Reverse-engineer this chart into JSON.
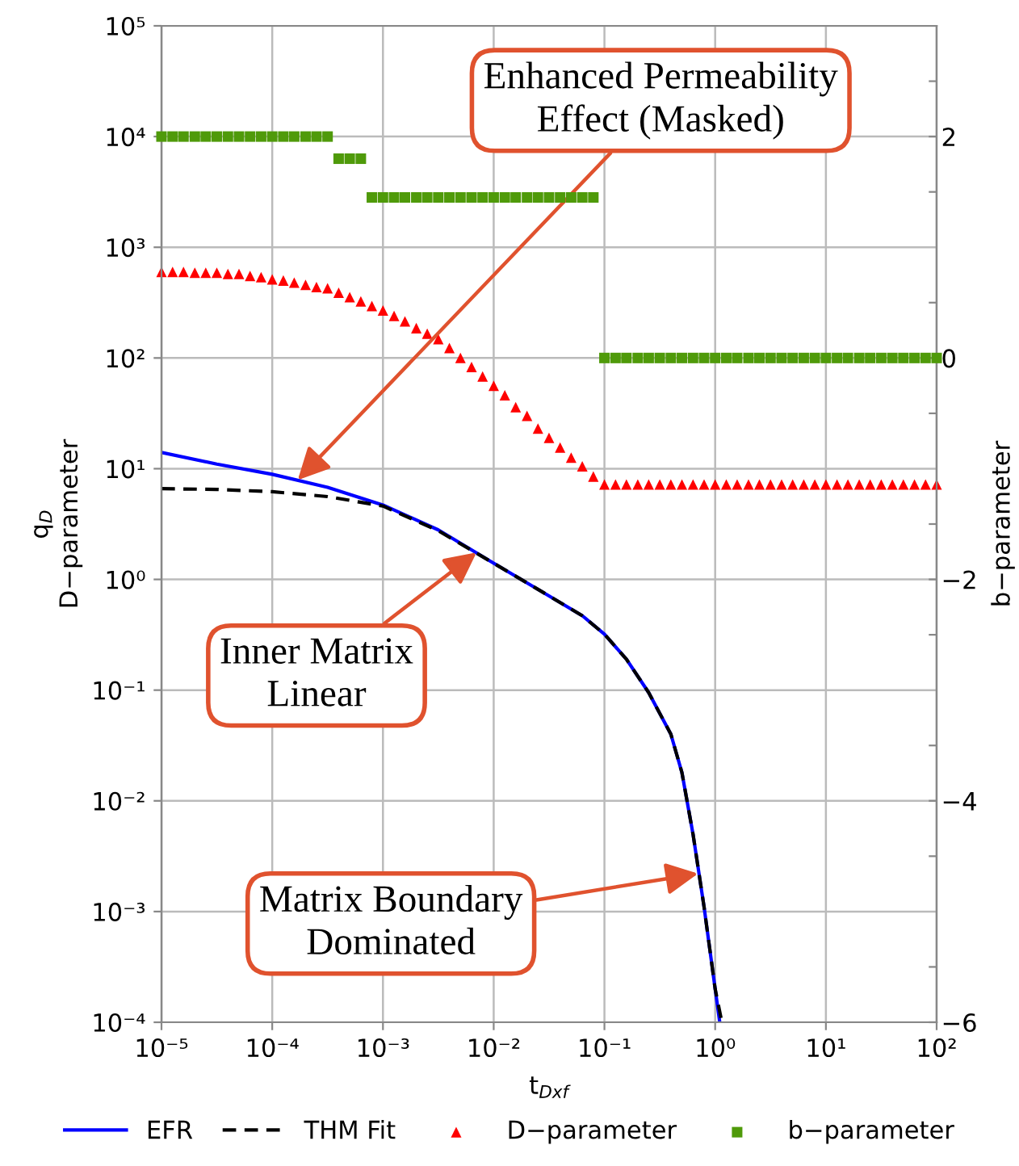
{
  "chart_data": {
    "type": "line",
    "xlabel": "t$_{Dxf}$",
    "ylabel": "q$_{D}$\nD−parameter",
    "y2label": "b−parameter",
    "log": "xy",
    "xlim": [
      1e-05,
      100
    ],
    "ylim": [
      0.0001,
      100000
    ],
    "y2lim": [
      -6,
      3
    ],
    "xticks": [
      {
        "value": 1e-05,
        "label": "10⁻⁵"
      },
      {
        "value": 0.0001,
        "label": "10⁻⁴"
      },
      {
        "value": 0.001,
        "label": "10⁻³"
      },
      {
        "value": 0.01,
        "label": "10⁻²"
      },
      {
        "value": 0.1,
        "label": "10⁻¹"
      },
      {
        "value": 1,
        "label": "10⁰"
      },
      {
        "value": 10,
        "label": "10¹"
      },
      {
        "value": 100,
        "label": "10²"
      }
    ],
    "yticks": [
      {
        "value": 0.0001,
        "label": "10⁻⁴"
      },
      {
        "value": 0.001,
        "label": "10⁻³"
      },
      {
        "value": 0.01,
        "label": "10⁻²"
      },
      {
        "value": 0.1,
        "label": "10⁻¹"
      },
      {
        "value": 1,
        "label": "10⁰"
      },
      {
        "value": 10,
        "label": "10¹"
      },
      {
        "value": 100,
        "label": "10²"
      },
      {
        "value": 1000,
        "label": "10³"
      },
      {
        "value": 10000,
        "label": "10⁴"
      },
      {
        "value": 100000,
        "label": "10⁵"
      }
    ],
    "y2ticks": [
      {
        "value": -6,
        "label": "−6"
      },
      {
        "value": -5.5,
        "label": null
      },
      {
        "value": -4.5,
        "label": null
      },
      {
        "value": -4,
        "label": "−4"
      },
      {
        "value": -3.5,
        "label": null
      },
      {
        "value": -2.5,
        "label": null
      },
      {
        "value": -2,
        "label": "−2"
      },
      {
        "value": -1.5,
        "label": null
      },
      {
        "value": -0.5,
        "label": null
      },
      0,
      {
        "value": 0.5,
        "label": null
      },
      {
        "value": 1.5,
        "label": null
      },
      2,
      {
        "value": 2.5,
        "label": null
      }
    ],
    "grid": true,
    "legend": "bottom",
    "series": [
      {
        "name": "EFR",
        "color": "#0000ff",
        "line_style": "solid",
        "x": [
          1e-05,
          3.16e-05,
          0.0001,
          0.000316,
          0.001,
          0.00316,
          0.01,
          0.0316,
          0.0631,
          0.1,
          0.158,
          0.251,
          0.398,
          0.501,
          0.631,
          0.794,
          1.0,
          1.1
        ],
        "values": [
          14,
          11,
          8.9,
          6.8,
          4.7,
          2.8,
          1.4,
          0.71,
          0.47,
          0.32,
          0.19,
          0.095,
          0.04,
          0.018,
          0.005,
          0.0011,
          0.0002,
          0.0001
        ]
      },
      {
        "name": "THM Fit",
        "color": "#000000",
        "line_style": "dashed",
        "x": [
          1e-05,
          3.16e-05,
          0.0001,
          0.000316,
          0.001,
          0.00316,
          0.01,
          0.0316,
          0.0631,
          0.1,
          0.158,
          0.251,
          0.398,
          0.501,
          0.631,
          0.794,
          1.0,
          1.15
        ],
        "values": [
          6.6,
          6.5,
          6.2,
          5.6,
          4.6,
          2.75,
          1.4,
          0.71,
          0.47,
          0.32,
          0.19,
          0.095,
          0.04,
          0.018,
          0.005,
          0.0011,
          0.0002,
          0.0001
        ]
      },
      {
        "name": "D−parameter",
        "type": "scatter",
        "marker": "triangle",
        "color": "#ff0000",
        "x": [
          1e-05,
          1.26e-05,
          1.58e-05,
          2e-05,
          2.51e-05,
          3.16e-05,
          3.98e-05,
          5.01e-05,
          6.31e-05,
          7.94e-05,
          0.0001,
          0.000126,
          0.000158,
          0.0002,
          0.000251,
          0.000316,
          0.000398,
          0.000501,
          0.000631,
          0.000794,
          0.001,
          0.00126,
          0.00158,
          0.002,
          0.00251,
          0.00316,
          0.00398,
          0.00501,
          0.00631,
          0.00794,
          0.01,
          0.0126,
          0.0158,
          0.02,
          0.0251,
          0.0316,
          0.0398,
          0.0501,
          0.0631,
          0.0794,
          0.1,
          0.126,
          0.158,
          0.2,
          0.251,
          0.316,
          0.398,
          0.501,
          0.631,
          0.794,
          1,
          1.26,
          1.58,
          2,
          2.51,
          3.16,
          3.98,
          5.01,
          6.31,
          7.94,
          10,
          12.6,
          15.8,
          20,
          25.1,
          31.6,
          39.8,
          50.1,
          63.1,
          79.4,
          100
        ],
        "values": [
          600,
          600,
          600,
          590,
          590,
          590,
          575,
          575,
          550,
          537,
          513,
          501,
          479,
          457,
          437,
          427,
          389,
          355,
          324,
          295,
          269,
          240,
          214,
          186,
          166,
          148,
          123,
          100,
          83,
          68,
          56,
          46,
          36,
          30,
          23,
          19,
          15.5,
          12.6,
          10.5,
          8.5,
          7.2,
          7.2,
          7.2,
          7.2,
          7.2,
          7.2,
          7.2,
          7.2,
          7.2,
          7.2,
          7.2,
          7.2,
          7.2,
          7.2,
          7.2,
          7.2,
          7.2,
          7.2,
          7.2,
          7.2,
          7.2,
          7.2,
          7.2,
          7.2,
          7.2,
          7.2,
          7.2,
          7.2,
          7.2,
          7.2,
          7.2
        ]
      },
      {
        "name": "b−parameter",
        "type": "scatter",
        "marker": "square",
        "axis": "y2",
        "color": "#4f9a0a",
        "x": [
          1e-05,
          1.26e-05,
          1.58e-05,
          2e-05,
          2.51e-05,
          3.16e-05,
          3.98e-05,
          5.01e-05,
          6.31e-05,
          7.94e-05,
          0.0001,
          0.000126,
          0.000158,
          0.0002,
          0.000251,
          0.000316,
          0.000398,
          0.000501,
          0.000631,
          0.000794,
          0.001,
          0.00126,
          0.00158,
          0.002,
          0.00251,
          0.00316,
          0.00398,
          0.00501,
          0.00631,
          0.00794,
          0.01,
          0.0126,
          0.0158,
          0.02,
          0.0251,
          0.0316,
          0.0398,
          0.0501,
          0.0631,
          0.0794,
          0.1,
          0.126,
          0.158,
          0.2,
          0.251,
          0.316,
          0.398,
          0.501,
          0.631,
          0.794,
          1,
          1.26,
          1.58,
          2,
          2.51,
          3.16,
          3.98,
          5.01,
          6.31,
          7.94,
          10,
          12.6,
          15.8,
          20,
          25.1,
          31.6,
          39.8,
          50.1,
          63.1,
          79.4,
          100
        ],
        "values": [
          2,
          2,
          2,
          2,
          2,
          2,
          2,
          2,
          2,
          2,
          2,
          2,
          2,
          2,
          2,
          2,
          1.8,
          1.8,
          1.8,
          1.45,
          1.45,
          1.45,
          1.45,
          1.45,
          1.45,
          1.45,
          1.45,
          1.45,
          1.45,
          1.45,
          1.45,
          1.45,
          1.45,
          1.45,
          1.45,
          1.45,
          1.45,
          1.45,
          1.45,
          1.45,
          0,
          0,
          0,
          0,
          0,
          0,
          0,
          0,
          0,
          0,
          0,
          0,
          0,
          0,
          0,
          0,
          0,
          0,
          0,
          0,
          0,
          0,
          0,
          0,
          0,
          0,
          0,
          0,
          0,
          0,
          0
        ]
      }
    ],
    "annotations": [
      {
        "text": "Enhanced Permeability\nEffect (Masked)",
        "x": 0.00017,
        "y": 7.9
      },
      {
        "text": "Inner Matrix\nLinear",
        "x": 0.007,
        "y": 1.75
      },
      {
        "text": "Matrix Boundary\nDominated",
        "x": 0.7,
        "y": 0.0022
      }
    ]
  }
}
